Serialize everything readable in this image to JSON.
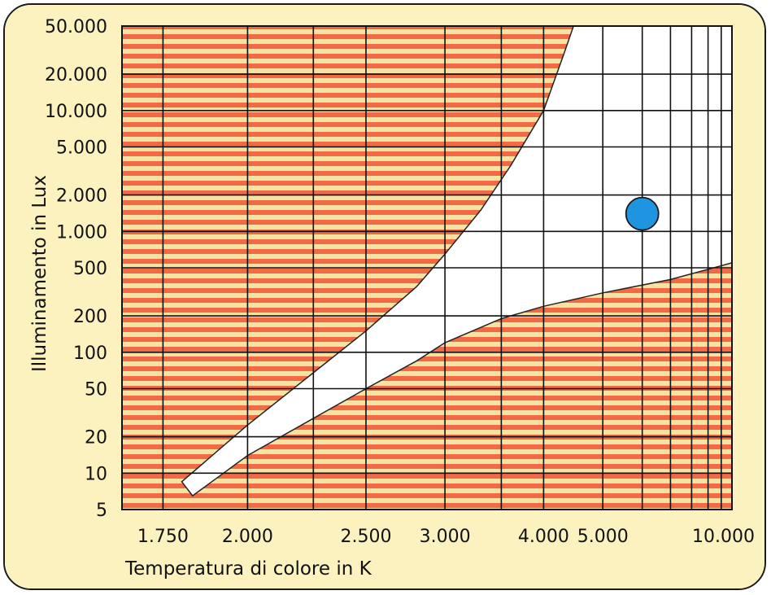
{
  "colors": {
    "panel_background": "#fcf2c0",
    "stripe_a": "#ef6a45",
    "stripe_b": "#f6e3a4",
    "comfort_zone": "#ffffff",
    "grid": "#111111",
    "marker": "#1e95de"
  },
  "chart_data": {
    "type": "area",
    "title": "",
    "xlabel": "Temperatura di colore in K",
    "ylabel": "Illuminamento in Lux",
    "x_scale": "reciprocal",
    "y_scale": "log",
    "xlim": [
      1650,
      11000
    ],
    "ylim": [
      5,
      50000
    ],
    "x_ticks": [
      {
        "value": 1750,
        "label": "1.750"
      },
      {
        "value": 2000,
        "label": "2.000"
      },
      {
        "value": 2500,
        "label": "2.500"
      },
      {
        "value": 3000,
        "label": "3.000"
      },
      {
        "value": 4000,
        "label": "4.000"
      },
      {
        "value": 5000,
        "label": "5.000"
      },
      {
        "value": 10000,
        "label": "10.000"
      }
    ],
    "y_ticks": [
      {
        "value": 5,
        "label": "5"
      },
      {
        "value": 10,
        "label": "10"
      },
      {
        "value": 20,
        "label": "20"
      },
      {
        "value": 50,
        "label": "50"
      },
      {
        "value": 100,
        "label": "100"
      },
      {
        "value": 200,
        "label": "200"
      },
      {
        "value": 500,
        "label": "500"
      },
      {
        "value": 1000,
        "label": "1.000"
      },
      {
        "value": 2000,
        "label": "2.000"
      },
      {
        "value": 5000,
        "label": "5.000"
      },
      {
        "value": 10000,
        "label": "10.000"
      },
      {
        "value": 20000,
        "label": "20.000"
      },
      {
        "value": 50000,
        "label": "50.000"
      }
    ],
    "x_gridlines": [
      1750,
      2000,
      2250,
      2500,
      3000,
      3500,
      4000,
      5000,
      6000,
      7000,
      8000,
      9000,
      10000
    ],
    "y_gridlines": [
      5,
      10,
      20,
      50,
      100,
      200,
      500,
      1000,
      2000,
      5000,
      10000,
      20000,
      50000
    ],
    "comfort_zone": {
      "upper_boundary": [
        {
          "x": 1800,
          "y": 8.5
        },
        {
          "x": 2000,
          "y": 25
        },
        {
          "x": 2500,
          "y": 150
        },
        {
          "x": 2800,
          "y": 350
        },
        {
          "x": 3000,
          "y": 650
        },
        {
          "x": 3300,
          "y": 1500
        },
        {
          "x": 3600,
          "y": 3500
        },
        {
          "x": 4000,
          "y": 10000
        },
        {
          "x": 4300,
          "y": 30000
        },
        {
          "x": 4450,
          "y": 50000
        }
      ],
      "lower_boundary": [
        {
          "x": 1830,
          "y": 6.5
        },
        {
          "x": 2000,
          "y": 14
        },
        {
          "x": 2500,
          "y": 50
        },
        {
          "x": 2800,
          "y": 85
        },
        {
          "x": 3000,
          "y": 120
        },
        {
          "x": 3500,
          "y": 190
        },
        {
          "x": 4000,
          "y": 240
        },
        {
          "x": 5000,
          "y": 310
        },
        {
          "x": 7000,
          "y": 400
        },
        {
          "x": 11000,
          "y": 550
        }
      ]
    },
    "marker": {
      "x": 6000,
      "y": 1400
    },
    "grid": true,
    "legend": "none"
  }
}
